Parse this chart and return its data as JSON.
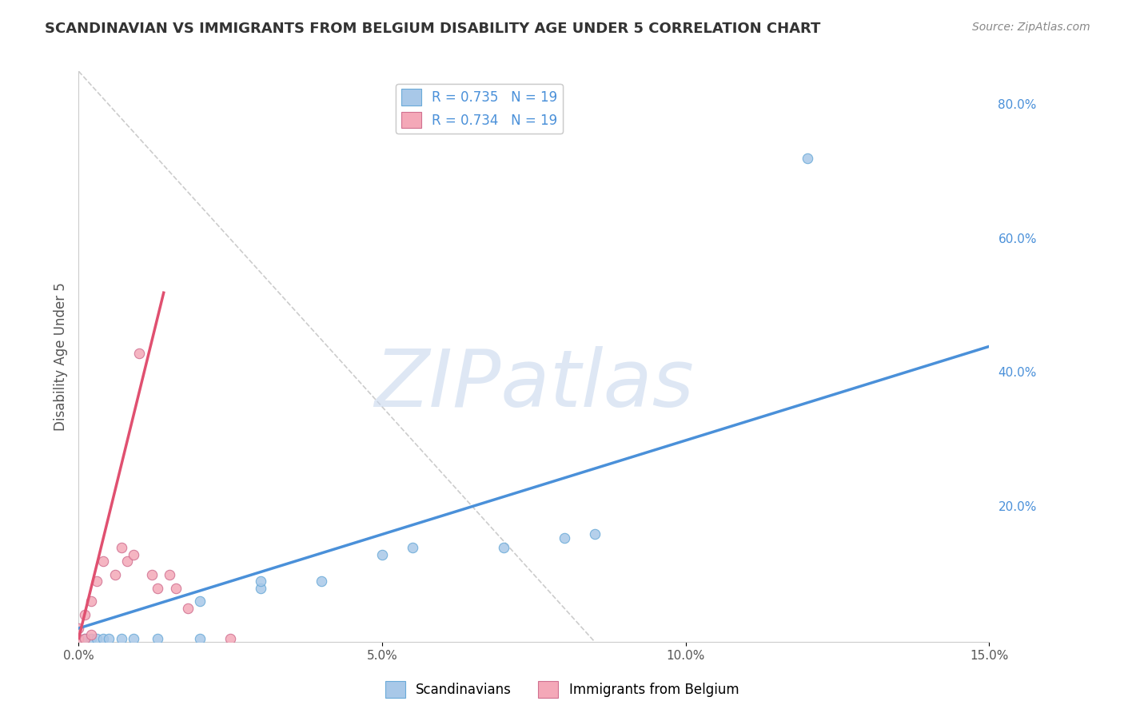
{
  "title": "SCANDINAVIAN VS IMMIGRANTS FROM BELGIUM DISABILITY AGE UNDER 5 CORRELATION CHART",
  "source_text": "Source: ZipAtlas.com",
  "ylabel": "Disability Age Under 5",
  "xmin": 0.0,
  "xmax": 0.15,
  "ymin": 0.0,
  "ymax": 0.85,
  "x_tick_labels": [
    "0.0%",
    "5.0%",
    "10.0%",
    "15.0%"
  ],
  "x_tick_vals": [
    0.0,
    0.05,
    0.1,
    0.15
  ],
  "y_tick_labels_right": [
    "80.0%",
    "60.0%",
    "40.0%",
    "20.0%"
  ],
  "y_tick_vals_right": [
    0.8,
    0.6,
    0.4,
    0.2
  ],
  "legend_r1": "R = 0.735   N = 19",
  "legend_r2": "R = 0.734   N = 19",
  "blue_color": "#a8c8e8",
  "pink_color": "#f4a8b8",
  "blue_line_color": "#4a90d9",
  "pink_line_color": "#e05070",
  "ref_line_color": "#cccccc",
  "watermark": "ZIPatlas",
  "watermark_color": "#c8d8ee",
  "title_fontsize": 13,
  "scandinavians_x": [
    0.001,
    0.002,
    0.003,
    0.004,
    0.005,
    0.007,
    0.009,
    0.013,
    0.02,
    0.02,
    0.03,
    0.03,
    0.04,
    0.05,
    0.055,
    0.07,
    0.08,
    0.085,
    0.12
  ],
  "scandinavians_y": [
    0.005,
    0.005,
    0.005,
    0.005,
    0.005,
    0.005,
    0.005,
    0.005,
    0.005,
    0.06,
    0.08,
    0.09,
    0.09,
    0.13,
    0.14,
    0.14,
    0.155,
    0.16,
    0.72
  ],
  "belgium_x": [
    0.0,
    0.0,
    0.001,
    0.001,
    0.002,
    0.002,
    0.003,
    0.004,
    0.006,
    0.007,
    0.008,
    0.009,
    0.01,
    0.012,
    0.013,
    0.015,
    0.016,
    0.018,
    0.025
  ],
  "belgium_y": [
    0.005,
    0.02,
    0.005,
    0.04,
    0.01,
    0.06,
    0.09,
    0.12,
    0.1,
    0.14,
    0.12,
    0.13,
    0.43,
    0.1,
    0.08,
    0.1,
    0.08,
    0.05,
    0.005
  ],
  "blue_trend_x": [
    0.0,
    0.15
  ],
  "blue_trend_y": [
    0.02,
    0.44
  ],
  "pink_trend_x": [
    0.0,
    0.014
  ],
  "pink_trend_y": [
    0.005,
    0.52
  ],
  "ref_line_x": [
    0.0,
    0.085
  ],
  "ref_line_y": [
    0.85,
    0.0
  ]
}
